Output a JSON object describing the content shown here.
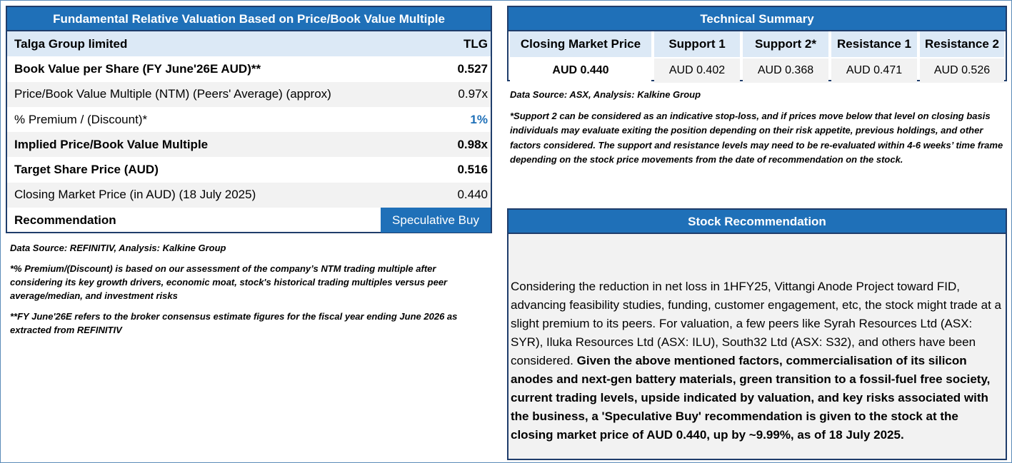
{
  "valuation": {
    "title": "Fundamental Relative Valuation Based on Price/Book Value Multiple",
    "company": "Talga Group limited",
    "ticker": "TLG",
    "rows": [
      {
        "label": "Book Value per Share (FY June'26E AUD)**",
        "value": "0.527"
      },
      {
        "label": "Price/Book Value Multiple (NTM)  (Peers' Average) (approx)",
        "value": "0.97x"
      },
      {
        "label": "% Premium / (Discount)*",
        "value": "1%"
      },
      {
        "label": "Implied Price/Book Value Multiple",
        "value": "0.98x"
      },
      {
        "label": "Target Share Price (AUD)",
        "value": "0.516"
      },
      {
        "label": "Closing Market Price (in AUD) (18 July 2025)",
        "value": "0.440"
      }
    ],
    "recommendation_label": "Recommendation",
    "recommendation_value": "Speculative Buy"
  },
  "left_notes": {
    "source": "Data Source: REFINITIV, Analysis: Kalkine Group",
    "note1": "*% Premium/(Discount) is based on our assessment of the company’s NTM trading multiple after considering its key growth drivers, economic moat, stock's historical trading multiples versus peer average/median, and investment risks",
    "note2": "**FY June'26E refers to the broker consensus estimate figures for the fiscal year ending June 2026  as extracted from REFINITIV"
  },
  "technical": {
    "title": "Technical Summary",
    "headers": [
      "Closing Market Price",
      "Support 1",
      "Support 2*",
      "Resistance 1",
      "Resistance 2"
    ],
    "values": [
      "AUD 0.440",
      "AUD 0.402",
      "AUD 0.368",
      "AUD 0.471",
      "AUD 0.526"
    ]
  },
  "right_notes": {
    "source": "Data Source: ASX, Analysis: Kalkine Group",
    "note": "*Support 2 can be considered as an indicative stop-loss, and if prices move below that level on closing basis individuals may evaluate exiting the position depending on their risk appetite, previous holdings, and other factors considered. The support and resistance levels may need to be re-evaluated within 4-6 weeks’ time frame depending on the stock price movements from the date of recommendation on the stock."
  },
  "stock_recommendation": {
    "title": "Stock Recommendation",
    "text_regular": "Considering the reduction in net loss in 1HFY25, Vittangi Anode Project toward FID, advancing feasibility studies, funding, customer engagement, etc, the stock might trade at a slight premium to its peers. For valuation, a few peers like Syrah Resources Ltd (ASX: SYR), Iluka Resources Ltd (ASX: ILU), South32 Ltd (ASX: S32), and others have been considered. ",
    "text_bold": "Given the above mentioned factors, commercialisation of its silicon anodes and next-gen battery materials, green transition to a fossil-fuel free society, current trading levels, upside indicated by valuation, and key risks associated with the business, a 'Speculative Buy' recommendation is given to the stock at the closing market price of AUD 0.440, up by ~9.99%, as of 18 July 2025."
  },
  "colors": {
    "header_blue": "#1f70b8",
    "border_navy": "#1f3d6b",
    "light_blue": "#dce9f6",
    "shade_grey": "#f2f2f2"
  }
}
